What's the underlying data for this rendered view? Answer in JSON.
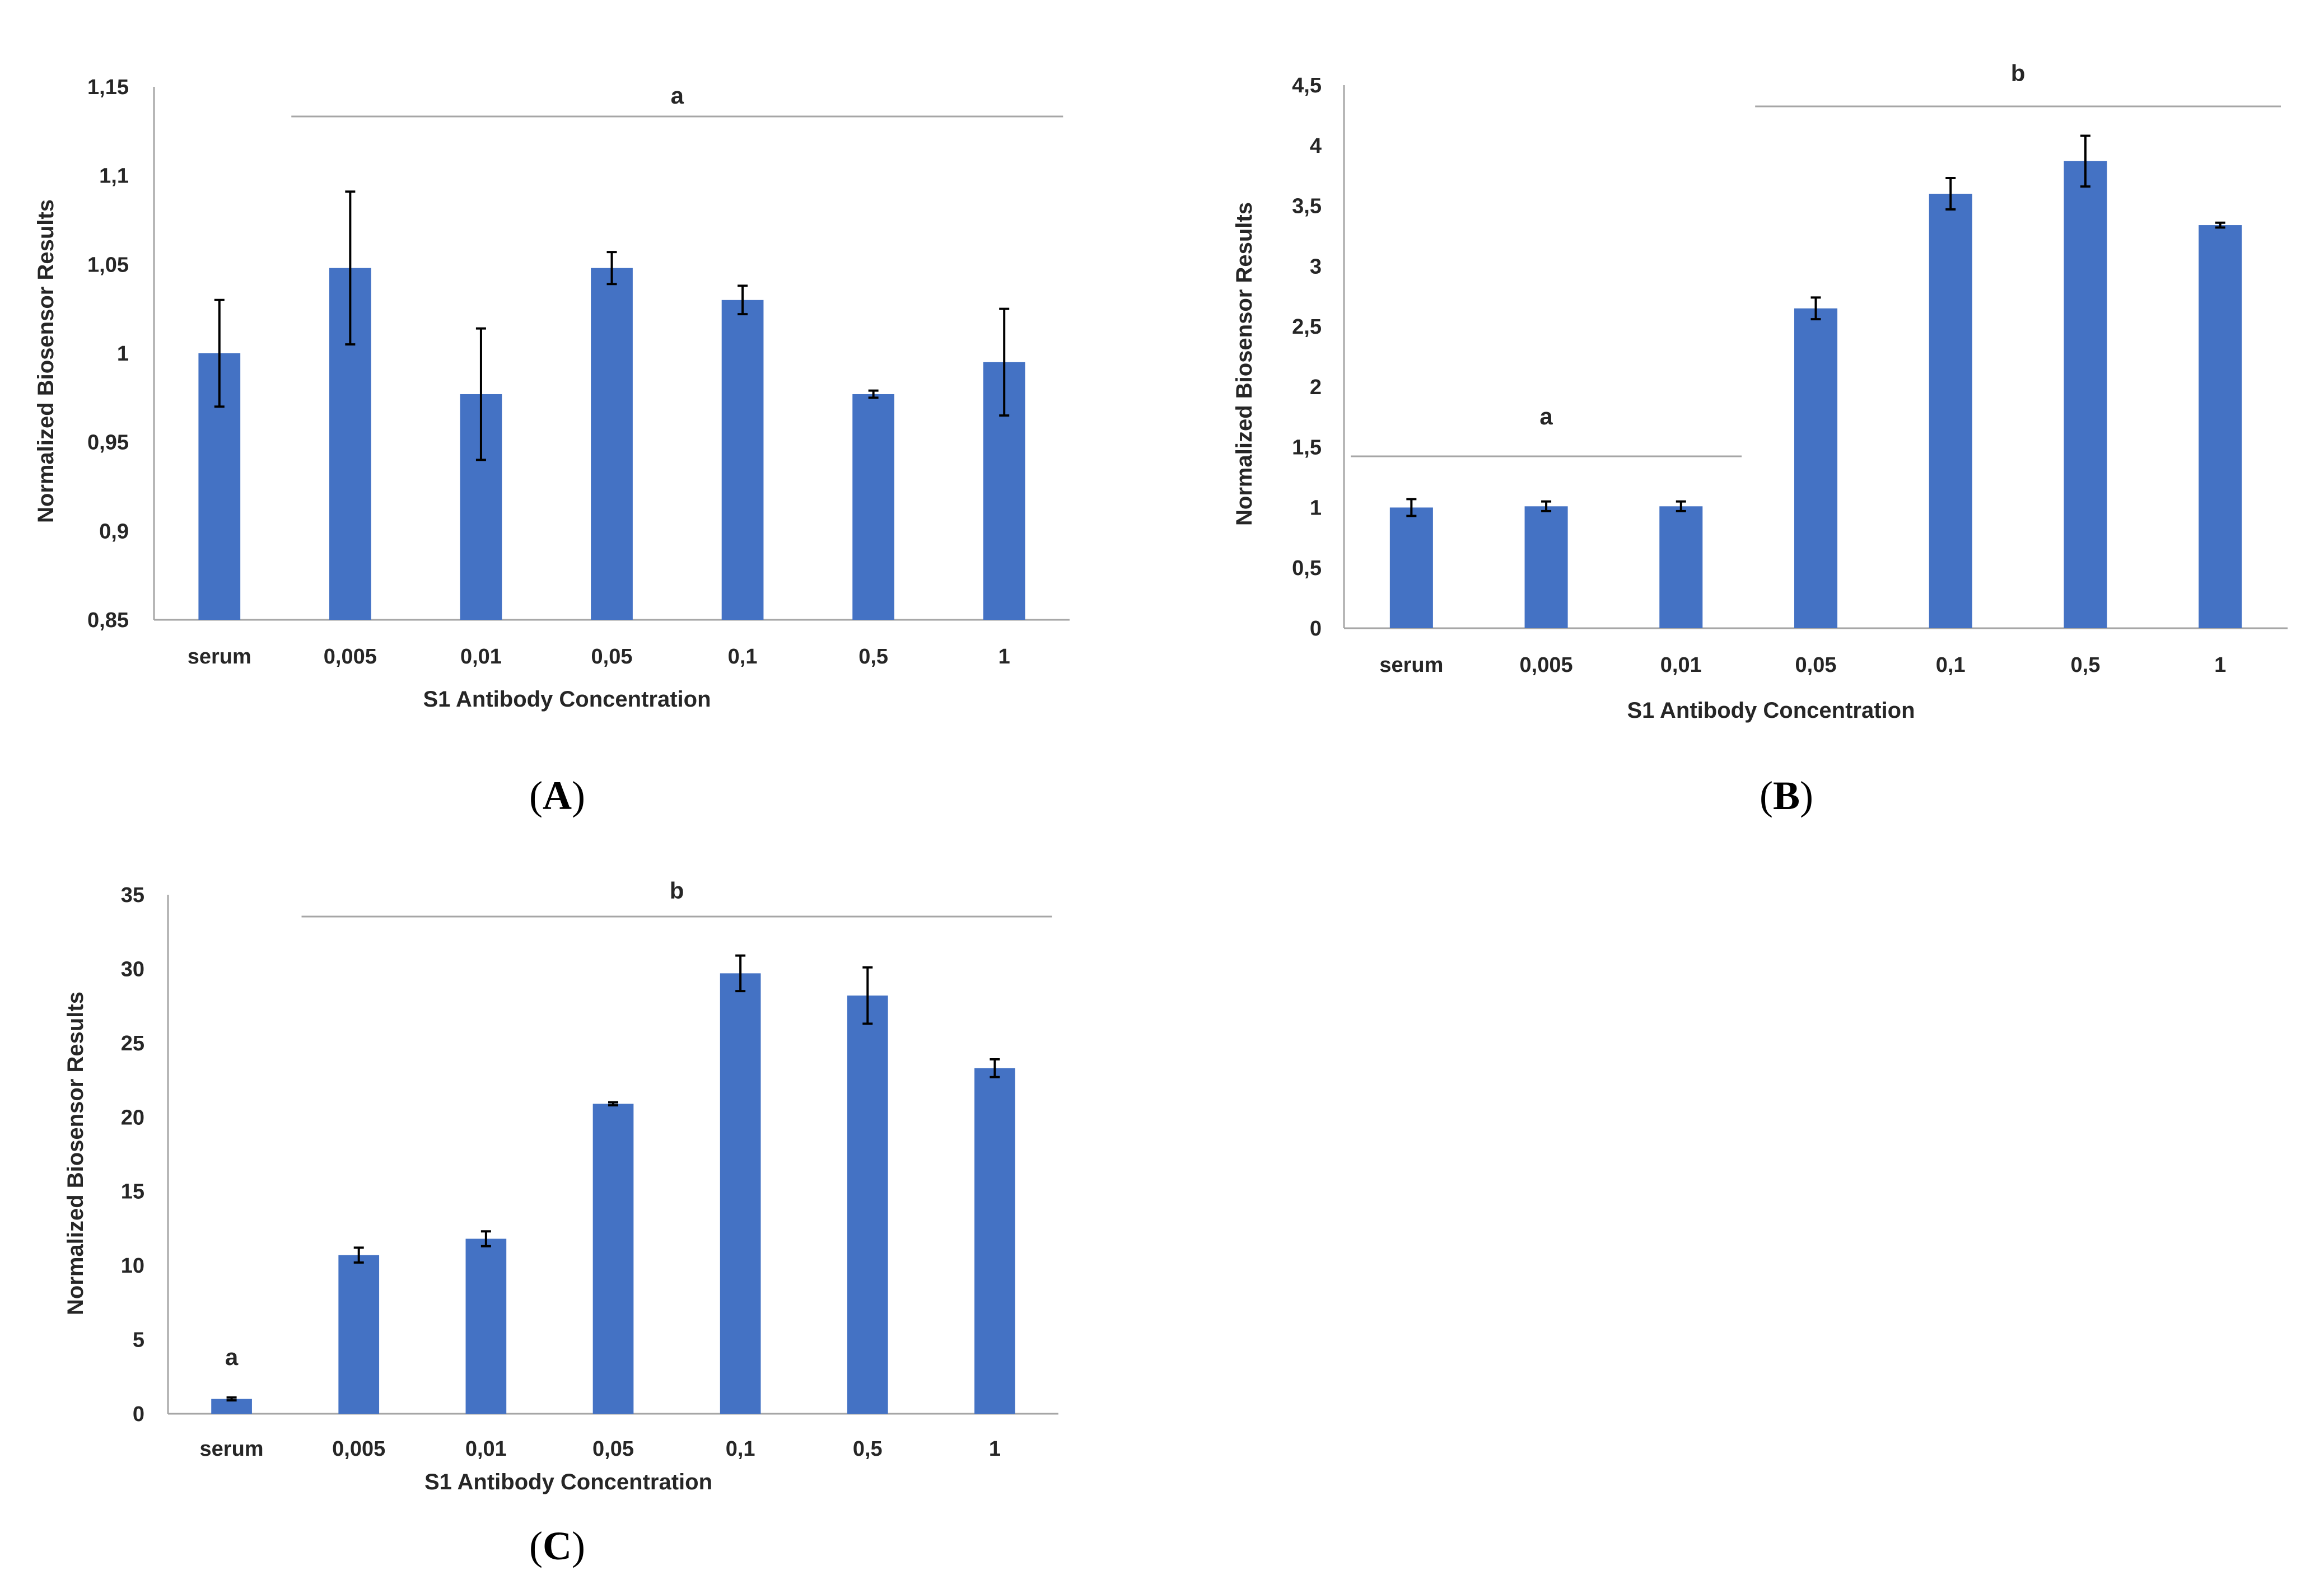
{
  "colors": {
    "bar": "#4472C4",
    "axis": "#A6A6A6",
    "text": "#262626",
    "error": "#000000"
  },
  "chart_data": [
    {
      "type": "bar",
      "panel": "A",
      "xlabel": "S1 Antibody Concentration",
      "ylabel": "Normalized Biosensor Results",
      "categories": [
        "serum",
        "0,005",
        "0,01",
        "0,05",
        "0,1",
        "0,5",
        "1"
      ],
      "values": [
        1.0,
        1.048,
        0.977,
        1.048,
        1.03,
        0.977,
        0.995
      ],
      "errors": [
        0.03,
        0.043,
        0.037,
        0.009,
        0.008,
        0.002,
        0.03
      ],
      "ylim": [
        0.85,
        1.15
      ],
      "yticks": [
        0.85,
        0.9,
        0.95,
        1,
        1.05,
        1.1,
        1.15
      ],
      "ytick_labels": [
        "0,85",
        "0,9",
        "0,95",
        "1",
        "1,05",
        "1,1",
        "1,15"
      ],
      "significance": [
        {
          "label": "a",
          "from": 1,
          "to": 6
        }
      ]
    },
    {
      "type": "bar",
      "panel": "B",
      "xlabel": "S1 Antibody Concentration",
      "ylabel": "Normalized Biosensor Results",
      "categories": [
        "serum",
        "0,005",
        "0,01",
        "0,05",
        "0,1",
        "0,5",
        "1"
      ],
      "values": [
        1.0,
        1.01,
        1.01,
        2.65,
        3.6,
        3.87,
        3.34
      ],
      "errors": [
        0.07,
        0.04,
        0.04,
        0.09,
        0.13,
        0.21,
        0.02
      ],
      "ylim": [
        0,
        4.5
      ],
      "yticks": [
        0,
        0.5,
        1,
        1.5,
        2,
        2.5,
        3,
        3.5,
        4,
        4.5
      ],
      "ytick_labels": [
        "0",
        "0,5",
        "1",
        "1,5",
        "2",
        "2,5",
        "3",
        "3,5",
        "4",
        "4,5"
      ],
      "significance": [
        {
          "label": "a",
          "from": 0,
          "to": 2
        },
        {
          "label": "b",
          "from": 3,
          "to": 6
        }
      ]
    },
    {
      "type": "bar",
      "panel": "C",
      "xlabel": "S1 Antibody Concentration",
      "ylabel": "Normalized Biosensor Results",
      "categories": [
        "serum",
        "0,005",
        "0,01",
        "0,05",
        "0,1",
        "0,5",
        "1"
      ],
      "values": [
        1.0,
        10.7,
        11.8,
        20.9,
        29.7,
        28.2,
        23.3
      ],
      "errors": [
        0.1,
        0.5,
        0.5,
        0.1,
        1.2,
        1.9,
        0.6
      ],
      "ylim": [
        0,
        35
      ],
      "yticks": [
        0,
        5,
        10,
        15,
        20,
        25,
        30,
        35
      ],
      "ytick_labels": [
        "0",
        "5",
        "10",
        "15",
        "20",
        "25",
        "30",
        "35"
      ],
      "significance": [
        {
          "label": "a",
          "from": 0,
          "to": 0
        },
        {
          "label": "b",
          "from": 1,
          "to": 6
        }
      ]
    }
  ],
  "panel_labels": [
    "A",
    "B",
    "C"
  ]
}
